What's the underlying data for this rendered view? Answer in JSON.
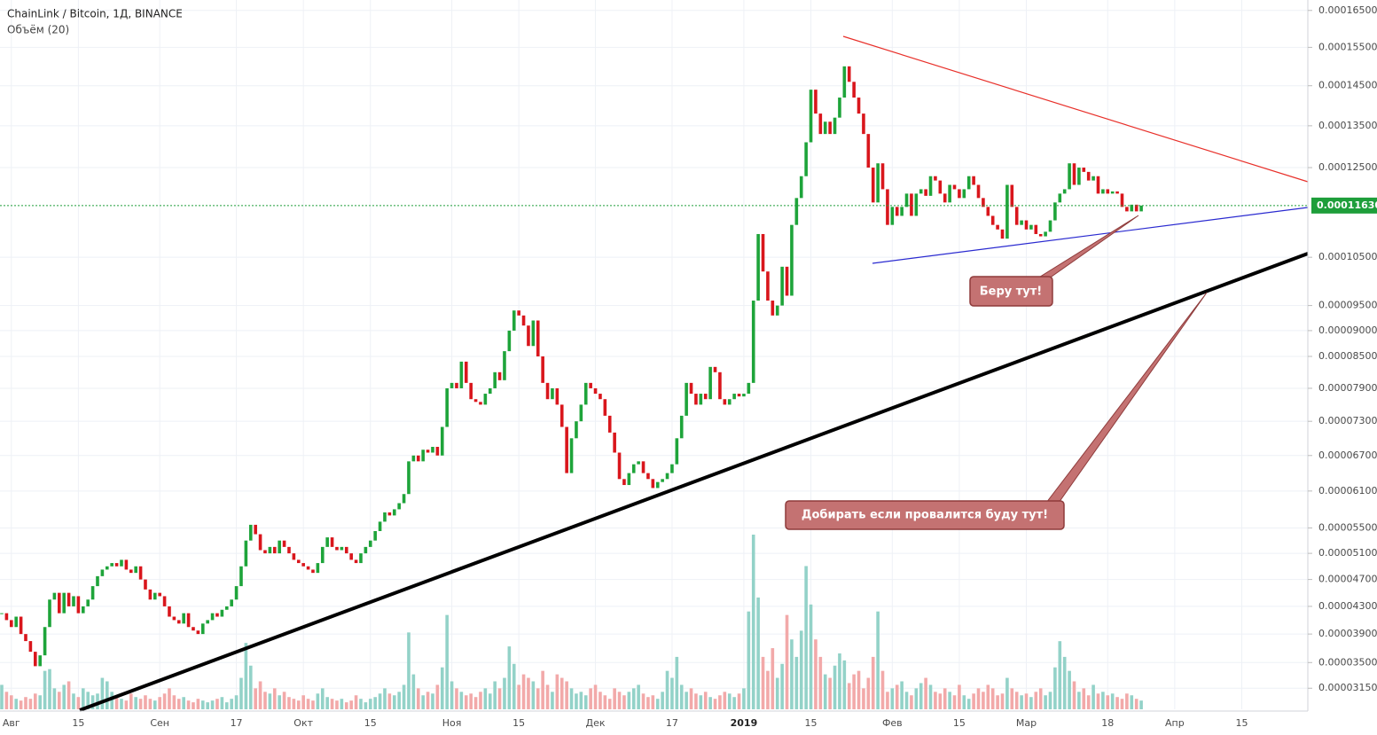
{
  "chart_data": {
    "type": "candlestick",
    "title": "ChainLink / Bitcoin, 1Д, BINANCE",
    "subtitle": "Объём (20)",
    "values": [
      4.2e-05,
      4.1e-05,
      4e-05,
      4.15e-05,
      3.9e-05,
      3.8e-05,
      3.65e-05,
      3.45e-05,
      3.6e-05,
      4e-05,
      4.4e-05,
      4.5e-05,
      4.2e-05,
      4.5e-05,
      4.3e-05,
      4.45e-05,
      4.2e-05,
      4.3e-05,
      4.4e-05,
      4.6e-05,
      4.75e-05,
      4.85e-05,
      4.9e-05,
      4.95e-05,
      4.9e-05,
      5e-05,
      4.85e-05,
      4.8e-05,
      4.9e-05,
      4.7e-05,
      4.55e-05,
      4.4e-05,
      4.5e-05,
      4.45e-05,
      4.3e-05,
      4.15e-05,
      4.1e-05,
      4.05e-05,
      4.2e-05,
      4e-05,
      3.95e-05,
      3.9e-05,
      4.05e-05,
      4.1e-05,
      4.2e-05,
      4.15e-05,
      4.25e-05,
      4.3e-05,
      4.4e-05,
      4.6e-05,
      4.9e-05,
      5.3e-05,
      5.55e-05,
      5.4e-05,
      5.15e-05,
      5.1e-05,
      5.2e-05,
      5.1e-05,
      5.3e-05,
      5.2e-05,
      5.1e-05,
      5e-05,
      4.95e-05,
      4.9e-05,
      4.85e-05,
      4.8e-05,
      4.95e-05,
      5.2e-05,
      5.35e-05,
      5.2e-05,
      5.15e-05,
      5.2e-05,
      5.1e-05,
      5e-05,
      4.95e-05,
      5.1e-05,
      5.2e-05,
      5.3e-05,
      5.45e-05,
      5.6e-05,
      5.75e-05,
      5.7e-05,
      5.8e-05,
      5.9e-05,
      6.05e-05,
      6.6e-05,
      6.7e-05,
      6.6e-05,
      6.8e-05,
      6.75e-05,
      6.85e-05,
      6.7e-05,
      7.2e-05,
      7.9e-05,
      8e-05,
      7.9e-05,
      8.4e-05,
      8e-05,
      7.7e-05,
      7.65e-05,
      7.6e-05,
      7.8e-05,
      7.9e-05,
      8.2e-05,
      8.05e-05,
      8.6e-05,
      9e-05,
      9.4e-05,
      9.3e-05,
      9.1e-05,
      8.7e-05,
      9.2e-05,
      8.5e-05,
      8e-05,
      7.7e-05,
      7.9e-05,
      7.6e-05,
      7.2e-05,
      6.4e-05,
      7e-05,
      7.3e-05,
      7.6e-05,
      8e-05,
      7.9e-05,
      7.8e-05,
      7.7e-05,
      7.4e-05,
      7.1e-05,
      6.75e-05,
      6.3e-05,
      6.2e-05,
      6.4e-05,
      6.55e-05,
      6.6e-05,
      6.4e-05,
      6.3e-05,
      6.15e-05,
      6.25e-05,
      6.3e-05,
      6.4e-05,
      6.55e-05,
      7e-05,
      7.4e-05,
      8e-05,
      7.8e-05,
      7.6e-05,
      7.8e-05,
      7.7e-05,
      8.3e-05,
      8.2e-05,
      7.7e-05,
      7.6e-05,
      7.7e-05,
      7.8e-05,
      7.75e-05,
      7.8e-05,
      8e-05,
      9.6e-05,
      0.00011,
      0.000102,
      9.6e-05,
      9.3e-05,
      9.5e-05,
      0.000103,
      9.7e-05,
      0.000112,
      0.000118,
      0.000123,
      0.000131,
      0.000144,
      0.000138,
      0.000133,
      0.000136,
      0.000133,
      0.000137,
      0.000142,
      0.00015,
      0.000146,
      0.000142,
      0.000138,
      0.000133,
      0.000125,
      0.000117,
      0.000126,
      0.00012,
      0.000112,
      0.000116,
      0.000114,
      0.000116,
      0.000119,
      0.000114,
      0.000119,
      0.00012,
      0.0001185,
      0.000123,
      0.000122,
      0.000119,
      0.000117,
      0.000121,
      0.00012,
      0.000118,
      0.00012,
      0.000123,
      0.000121,
      0.000118,
      0.000116,
      0.000114,
      0.000112,
      0.000111,
      0.000109,
      0.000121,
      0.000116,
      0.000112,
      0.000113,
      0.000111,
      0.000112,
      0.00011,
      0.0001095,
      0.0001105,
      0.000113,
      0.000117,
      0.000119,
      0.00012,
      0.000126,
      0.000121,
      0.000125,
      0.000124,
      0.000122,
      0.000123,
      0.000119,
      0.00012,
      0.000119,
      0.0001195,
      0.000119,
      0.000116,
      0.000115,
      0.0001165,
      0.000115,
      0.0001163
    ],
    "volume": [
      14,
      10,
      8,
      6,
      5,
      7,
      6,
      9,
      8,
      22,
      23,
      12,
      10,
      14,
      16,
      9,
      7,
      12,
      10,
      8,
      9,
      18,
      16,
      10,
      8,
      6,
      5,
      9,
      7,
      6,
      8,
      6,
      5,
      7,
      9,
      12,
      8,
      6,
      7,
      5,
      4,
      6,
      5,
      4,
      5,
      6,
      7,
      4,
      6,
      8,
      18,
      38,
      25,
      12,
      16,
      10,
      9,
      12,
      8,
      10,
      7,
      6,
      5,
      8,
      6,
      5,
      9,
      12,
      7,
      6,
      5,
      6,
      4,
      5,
      8,
      6,
      4,
      6,
      7,
      9,
      12,
      9,
      8,
      10,
      14,
      44,
      20,
      12,
      8,
      10,
      9,
      14,
      24,
      54,
      16,
      12,
      10,
      8,
      9,
      7,
      10,
      12,
      9,
      16,
      12,
      18,
      36,
      26,
      14,
      20,
      18,
      16,
      12,
      22,
      14,
      10,
      20,
      18,
      16,
      12,
      9,
      10,
      8,
      12,
      14,
      10,
      8,
      6,
      12,
      10,
      8,
      10,
      12,
      14,
      9,
      7,
      8,
      6,
      10,
      22,
      18,
      30,
      14,
      10,
      12,
      9,
      8,
      10,
      7,
      6,
      8,
      10,
      9,
      7,
      9,
      12,
      56,
      100,
      64,
      30,
      22,
      35,
      18,
      26,
      54,
      40,
      30,
      45,
      82,
      60,
      40,
      30,
      20,
      18,
      25,
      32,
      28,
      15,
      20,
      22,
      12,
      18,
      30,
      56,
      22,
      10,
      12,
      14,
      16,
      10,
      8,
      12,
      15,
      18,
      14,
      10,
      9,
      12,
      10,
      8,
      14,
      8,
      6,
      9,
      12,
      10,
      14,
      12,
      8,
      9,
      18,
      12,
      10,
      8,
      9,
      7,
      10,
      12,
      8,
      10,
      24,
      39,
      30,
      22,
      16,
      10,
      12,
      8,
      14,
      9,
      10,
      8,
      9,
      7,
      6,
      9,
      8,
      6,
      5
    ],
    "up_color": "#1ea43a",
    "down_color": "#d9161c",
    "volume_up_color": "#93d2c8",
    "volume_down_color": "#f2a9a9",
    "log_scale": true,
    "grid": true,
    "ylim": [
      2.87e-05,
      0.0001679
    ],
    "yticks": [
      {
        "value": 0.000165,
        "label": "0.00016500"
      },
      {
        "value": 0.000155,
        "label": "0.00015500"
      },
      {
        "value": 0.000145,
        "label": "0.00014500"
      },
      {
        "value": 0.000135,
        "label": "0.00013500"
      },
      {
        "value": 0.000125,
        "label": "0.00012500"
      },
      {
        "value": 0.000105,
        "label": "0.00010500"
      },
      {
        "value": 9.5e-05,
        "label": "0.00009500"
      },
      {
        "value": 9e-05,
        "label": "0.00009000"
      },
      {
        "value": 8.5e-05,
        "label": "0.00008500"
      },
      {
        "value": 7.9e-05,
        "label": "0.00007900"
      },
      {
        "value": 7.3e-05,
        "label": "0.00007300"
      },
      {
        "value": 6.7e-05,
        "label": "0.00006700"
      },
      {
        "value": 6.1e-05,
        "label": "0.00006100"
      },
      {
        "value": 5.5e-05,
        "label": "0.00005500"
      },
      {
        "value": 5.1e-05,
        "label": "0.00005100"
      },
      {
        "value": 4.7e-05,
        "label": "0.00004700"
      },
      {
        "value": 4.3e-05,
        "label": "0.00004300"
      },
      {
        "value": 3.9e-05,
        "label": "0.00003900"
      },
      {
        "value": 3.5e-05,
        "label": "0.00003500"
      },
      {
        "value": 3.15e-05,
        "label": "0.00003150"
      }
    ],
    "xlim": [
      -0.37,
      272.8
    ],
    "xticks": [
      {
        "value": 2,
        "label": "Авг"
      },
      {
        "value": 16,
        "label": "15"
      },
      {
        "value": 33,
        "label": "Сен"
      },
      {
        "value": 49,
        "label": "17"
      },
      {
        "value": 63,
        "label": "Окт"
      },
      {
        "value": 77,
        "label": "15"
      },
      {
        "value": 94,
        "label": "Ноя"
      },
      {
        "value": 108,
        "label": "15"
      },
      {
        "value": 124,
        "label": "Дек"
      },
      {
        "value": 140,
        "label": "17"
      },
      {
        "value": 155,
        "label": "2019"
      },
      {
        "value": 169,
        "label": "15"
      },
      {
        "value": 186,
        "label": "Фев"
      },
      {
        "value": 200,
        "label": "15"
      },
      {
        "value": 214,
        "label": "Мар"
      },
      {
        "value": 231,
        "label": "18"
      },
      {
        "value": 245,
        "label": "Апр"
      },
      {
        "value": 259,
        "label": "15"
      }
    ],
    "price_line": {
      "value": 0.0001163,
      "label": "0.00011630",
      "color": "#1e9e3a"
    },
    "annotations": [
      "Беру тут!",
      "Добирать если провалится буду тут!"
    ]
  }
}
